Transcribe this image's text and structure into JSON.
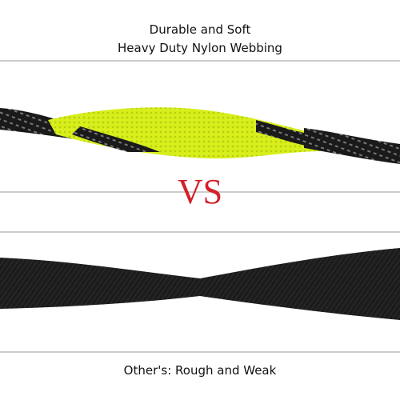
{
  "header": {
    "line1": "Durable and Soft",
    "line2": "Heavy Duty Nylon Webbing"
  },
  "divider_text": "VS",
  "footer": "Other's: Rough and Weak"
}
